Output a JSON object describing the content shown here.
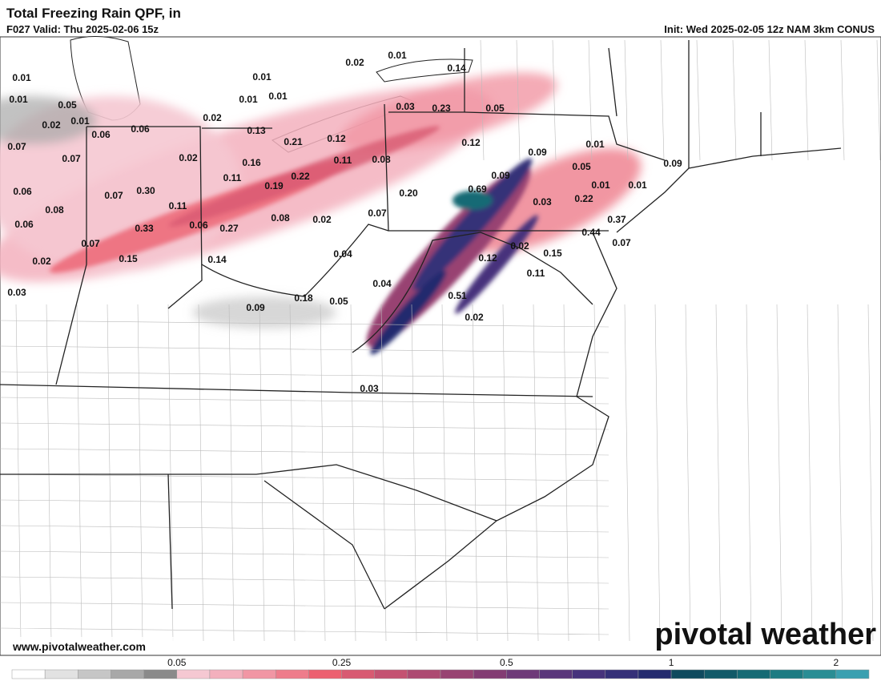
{
  "header": {
    "title": "Total Freezing Rain QPF, in",
    "valid": "F027 Valid: Thu 2025-02-06 15z",
    "init": "Init: Wed 2025-02-05 12z NAM 3km CONUS"
  },
  "footer": {
    "website": "www.pivotalweather.com",
    "logo": "pivotal weather"
  },
  "colorbar": {
    "colors": [
      "#ffffff",
      "#e2e2e2",
      "#c6c6c6",
      "#a8a8a8",
      "#8a8a8a",
      "#f5c8d2",
      "#f3b0bd",
      "#f196a4",
      "#ee7c8b",
      "#ec6070",
      "#d85a72",
      "#c45272",
      "#ad4a72",
      "#984372",
      "#833c73",
      "#6e3a78",
      "#5a367a",
      "#47337c",
      "#353078",
      "#242b6e",
      "#0f4a5e",
      "#125a68",
      "#166a74",
      "#1d7b82",
      "#2a8d94",
      "#3aa0b0"
    ],
    "ticks": [
      0.05,
      0.25,
      0.5,
      1,
      2
    ]
  },
  "map_labels": [
    "0.01",
    "0.01",
    "0.05",
    "0.02",
    "0.01",
    "0.06",
    "0.06",
    "0.07",
    "0.07",
    "0.02",
    "0.13",
    "0.21",
    "0.12",
    "0.02",
    "0.16",
    "0.11",
    "0.08",
    "0.11",
    "0.22",
    "0.19",
    "0.06",
    "0.07",
    "0.30",
    "0.20",
    "0.08",
    "0.11",
    "0.08",
    "0.02",
    "0.07",
    "0.06",
    "0.33",
    "0.06",
    "0.27",
    "0.07",
    "0.02",
    "0.15",
    "0.14",
    "0.04",
    "0.04",
    "0.03",
    "0.09",
    "0.18",
    "0.05",
    "0.02",
    "0.01",
    "0.01",
    "0.01",
    "0.01",
    "0.14",
    "0.03",
    "0.23",
    "0.05",
    "0.12",
    "0.09",
    "0.01",
    "0.05",
    "0.09",
    "0.69",
    "0.03",
    "0.22",
    "0.01",
    "0.01",
    "0.09",
    "0.37",
    "0.44",
    "0.07",
    "0.02",
    "0.12",
    "0.15",
    "0.11",
    "0.51",
    "0.02",
    "0.03"
  ]
}
